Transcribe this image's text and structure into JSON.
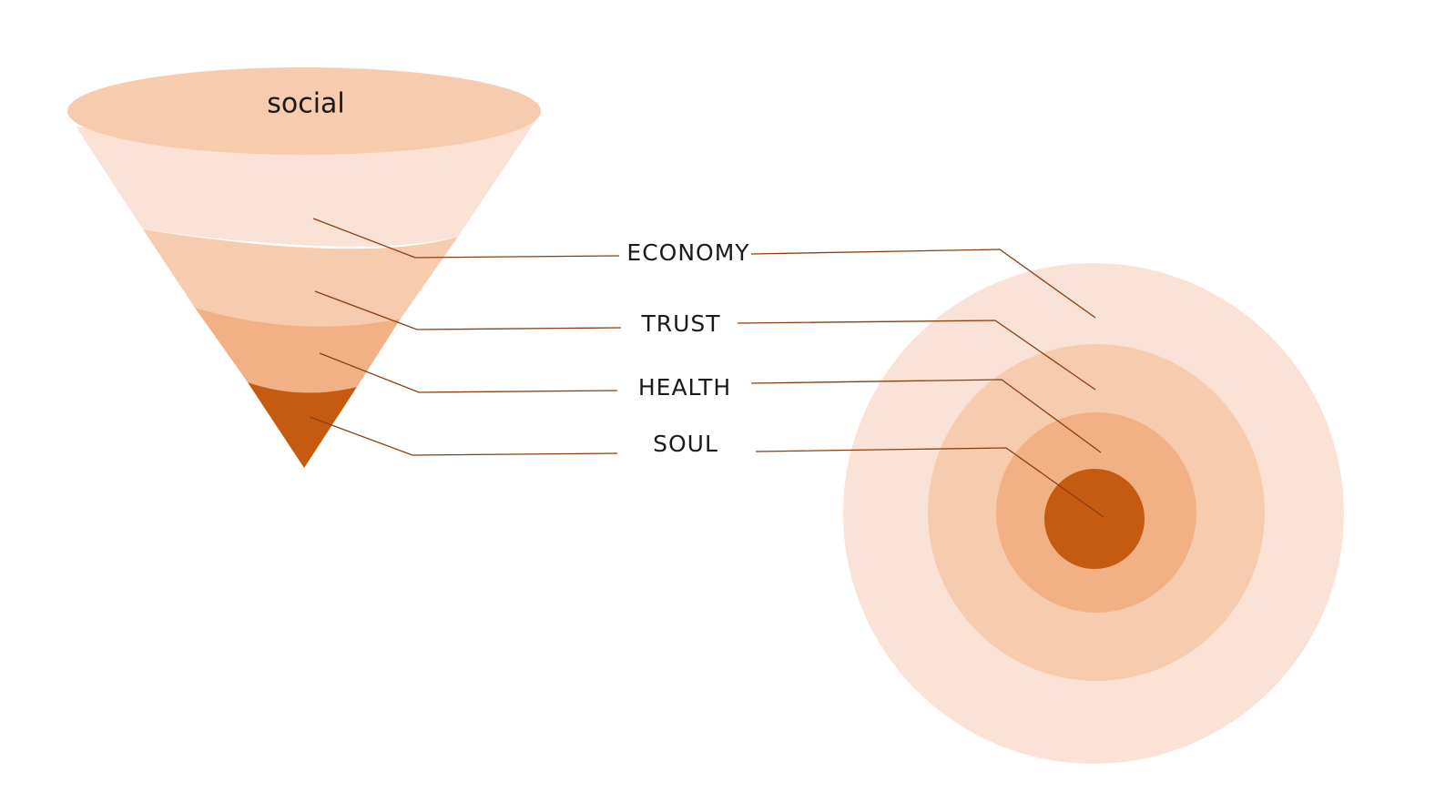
{
  "funnel": {
    "top_label": "social"
  },
  "labels": [
    "ECONOMY",
    "TRUST",
    "HEALTH",
    "SOUL"
  ]
}
